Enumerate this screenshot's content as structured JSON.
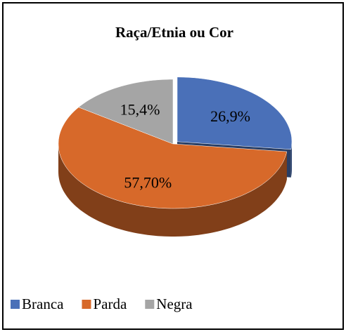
{
  "chart_data": {
    "type": "pie3d",
    "title": "Raça/Etnia ou Cor",
    "categories": [
      "Branca",
      "Parda",
      "Negra"
    ],
    "values": [
      26.9,
      57.7,
      15.4
    ],
    "value_labels": [
      "26,9%",
      "57,70%",
      "15,4%"
    ],
    "colors": [
      "#4a70b8",
      "#d7692a",
      "#a5a5a5"
    ],
    "legend": "bottom"
  }
}
